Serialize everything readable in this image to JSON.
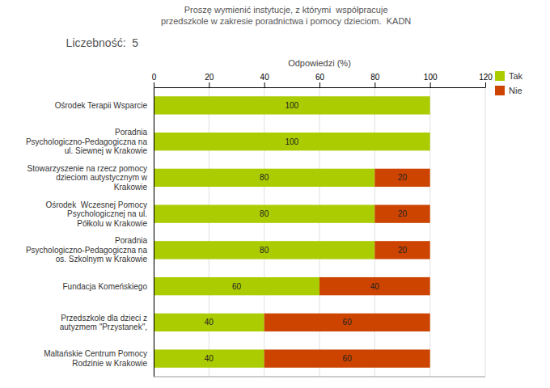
{
  "chart_data": {
    "type": "bar",
    "orientation": "horizontal",
    "stacked": true,
    "title": "Proszę wymienić instytucje, z którymi  współpracuje\nprzedszkole w zakresie poradnictwa i pomocy dzieciom.  KADN",
    "subtitle": "Liczebność:  5",
    "x_label": "Odpowiedzi (%)",
    "categories": [
      "Maltańskie Centrum Pomocy\nRodzinie w Krakowie",
      "Przedszkole dla dzieci z\nautyzmem \"Przystanek\",",
      "Fundacja Komeńskiego",
      "Poradnia\nPsychologiczno-Pedagogiczna na\nos. Szkolnym w Krakowie",
      "Ośrodek  Wczesnej Pomocy\nPsychologicznej na ul.\nPółkolu w Krakowie",
      "Stowarzyszenie na rzecz pomocy\ndzieciom autystycznym w\nKrakowie",
      "Poradnia\nPsychologiczno-Pedagogiczna na\nul. Siewnej w Krakowie",
      "Ośrodek Terapii Wsparcie"
    ],
    "series": [
      {
        "name": "Tak",
        "color": "#aacc00",
        "values": [
          40,
          40,
          60,
          80,
          80,
          80,
          100,
          100
        ]
      },
      {
        "name": "Nie",
        "color": "#cc4400",
        "values": [
          60,
          60,
          40,
          20,
          20,
          20,
          0,
          0
        ]
      }
    ],
    "xlim": [
      0,
      120
    ],
    "xticks": [
      0,
      20,
      40,
      60,
      80,
      100,
      120
    ],
    "grid": true,
    "legend": "right",
    "data_labels": true
  }
}
